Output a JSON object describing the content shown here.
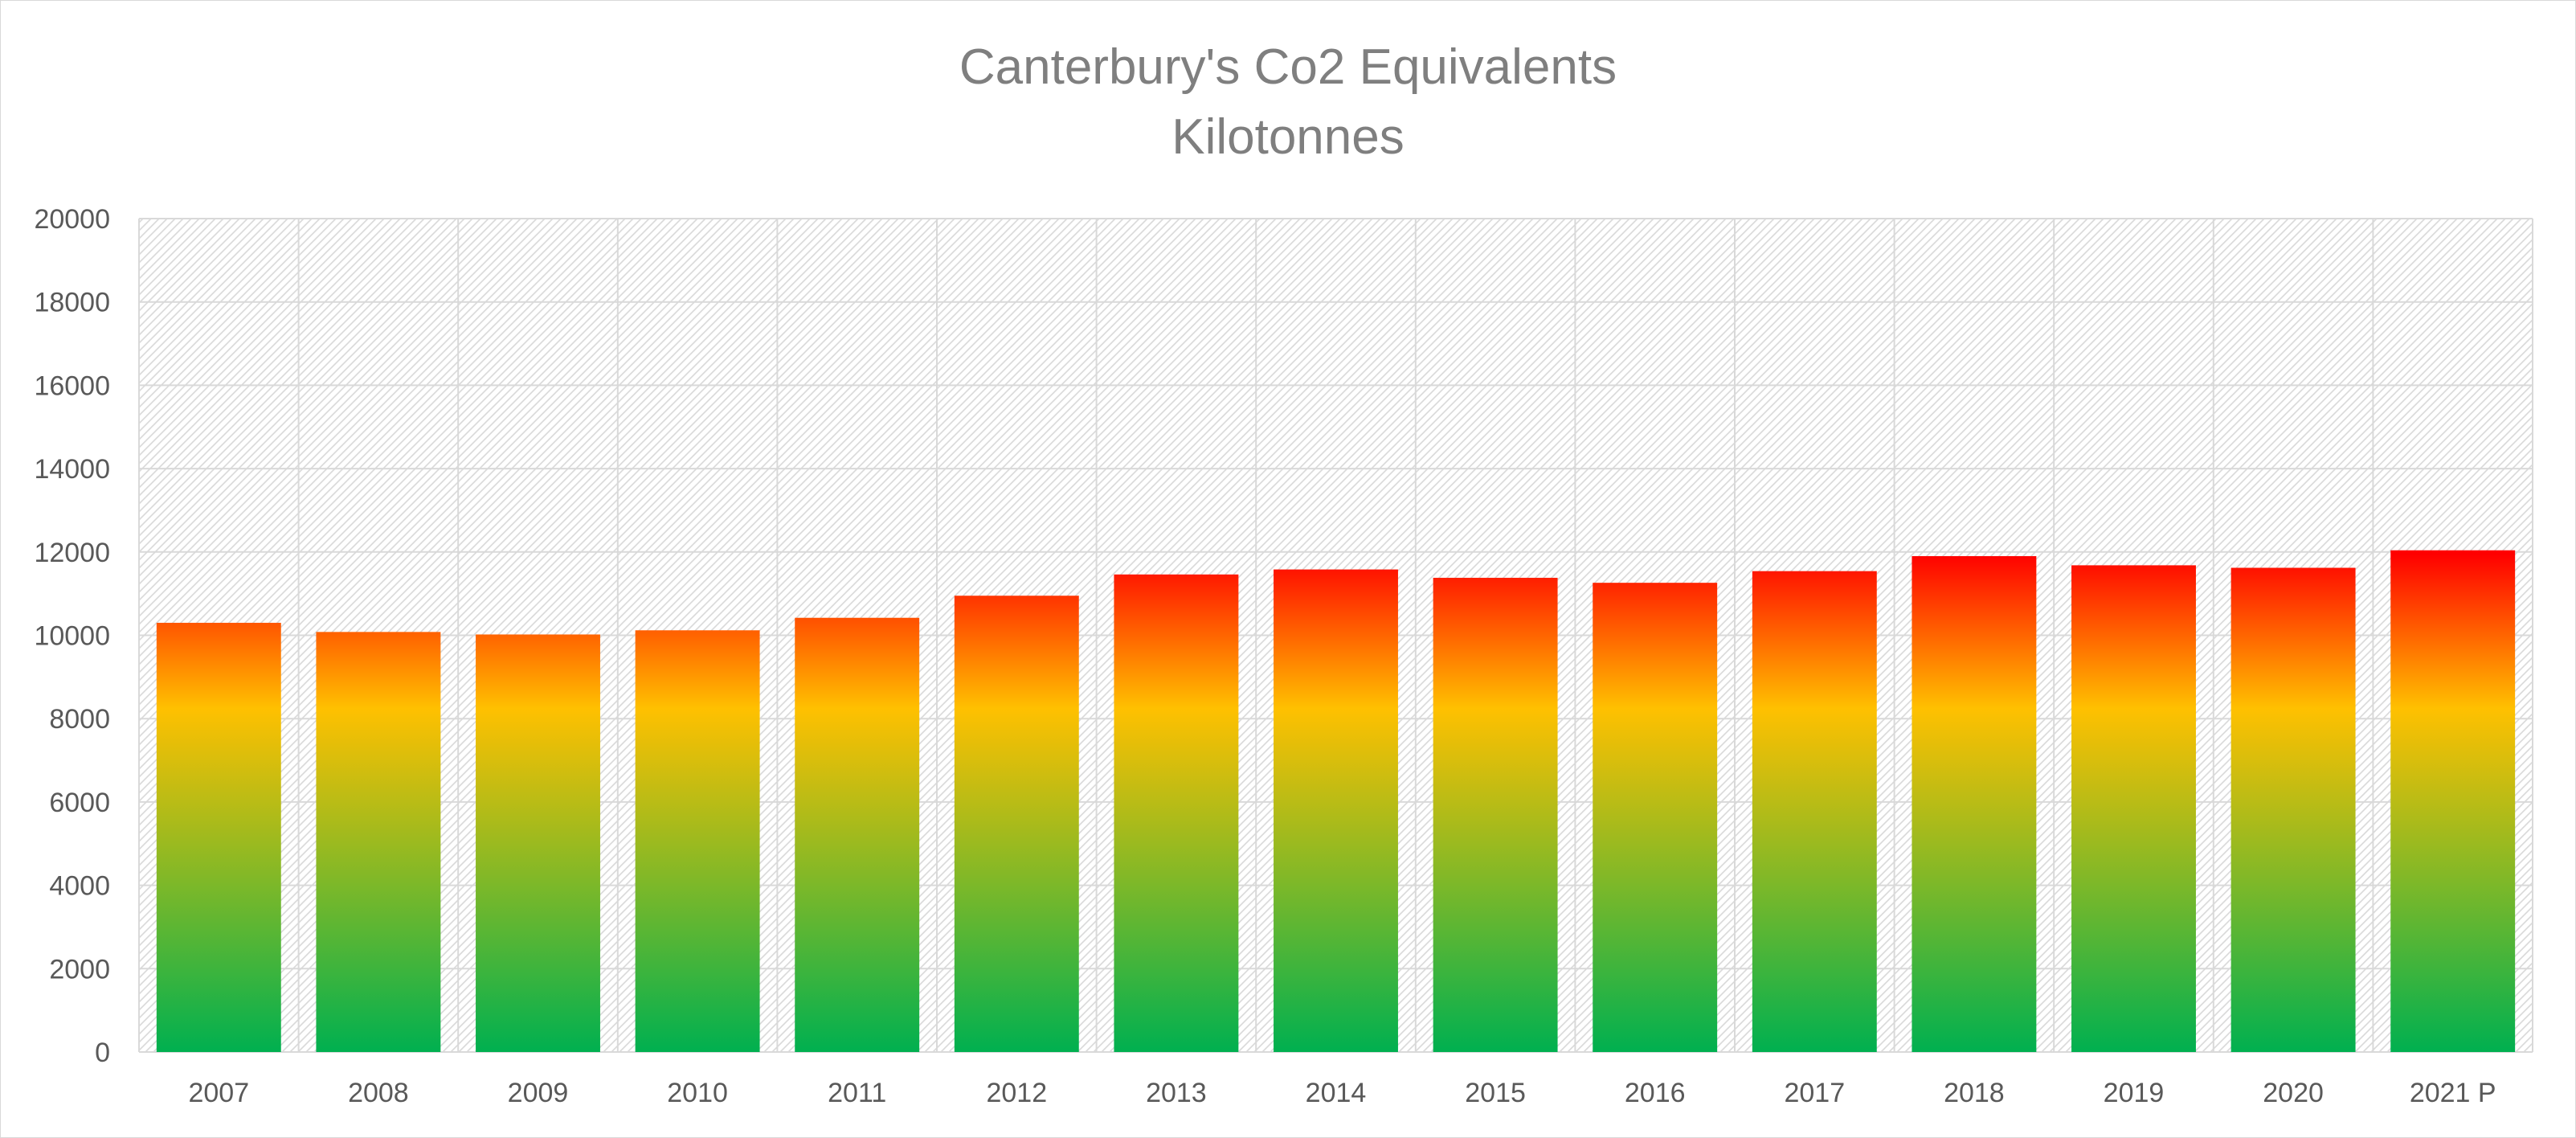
{
  "chart_data": {
    "type": "bar",
    "title": "Canterbury's Co2 Equivalents",
    "subtitle": "Kilotonnes",
    "categories": [
      "2007",
      "2008",
      "2009",
      "2010",
      "2011",
      "2012",
      "2013",
      "2014",
      "2015",
      "2016",
      "2017",
      "2018",
      "2019",
      "2020",
      "2021 P"
    ],
    "values": [
      10300,
      10080,
      10020,
      10120,
      10420,
      10950,
      11460,
      11580,
      11380,
      11260,
      11540,
      11900,
      11680,
      11620,
      12040
    ],
    "ylim": [
      0,
      20000
    ],
    "yticks": [
      "0",
      "2000",
      "4000",
      "6000",
      "8000",
      "10000",
      "12000",
      "14000",
      "16000",
      "18000",
      "20000"
    ],
    "xlabel": "",
    "ylabel": "",
    "grid": true,
    "gradient_colors": {
      "low": "#00b050",
      "mid": "#ffc000",
      "high": "#ff0000"
    },
    "gridline_color": "#d9d9d9",
    "plot_pattern_color": "#d9d9d9"
  }
}
